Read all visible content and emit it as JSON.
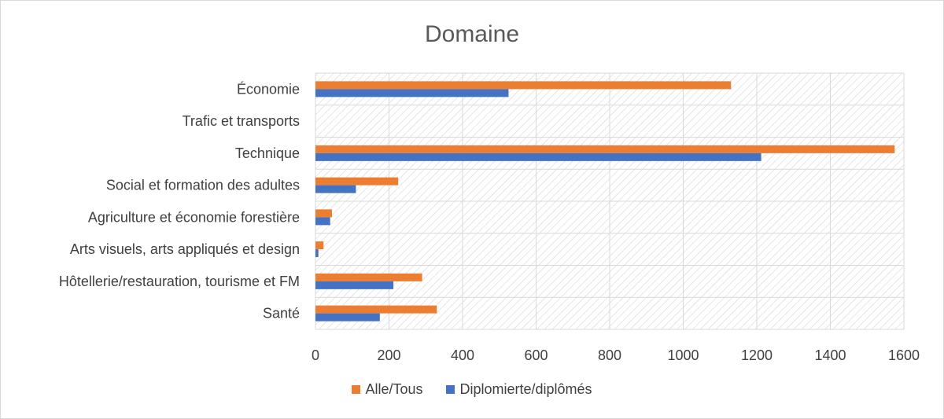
{
  "chart_data": {
    "type": "bar",
    "orientation": "horizontal",
    "title": "Domaine",
    "categories": [
      "Économie",
      "Trafic et transports",
      "Technique",
      "Social et formation des adultes",
      "Agriculture et économie forestière",
      "Arts visuels, arts appliqués et design",
      "Hôtellerie/restauration, tourisme et FM",
      "Santé"
    ],
    "series": [
      {
        "name": "Alle/Tous",
        "color": "#ED7D31",
        "values": [
          1130,
          0,
          1575,
          225,
          45,
          22,
          290,
          330
        ]
      },
      {
        "name": "Diplomierte/diplômés",
        "color": "#4472C4",
        "values": [
          525,
          0,
          1212,
          110,
          40,
          8,
          212,
          175
        ]
      }
    ],
    "xlim": [
      0,
      1600
    ],
    "xticks": [
      0,
      200,
      400,
      600,
      800,
      1000,
      1200,
      1400,
      1600
    ],
    "grid": true,
    "legend_position": "bottom"
  }
}
